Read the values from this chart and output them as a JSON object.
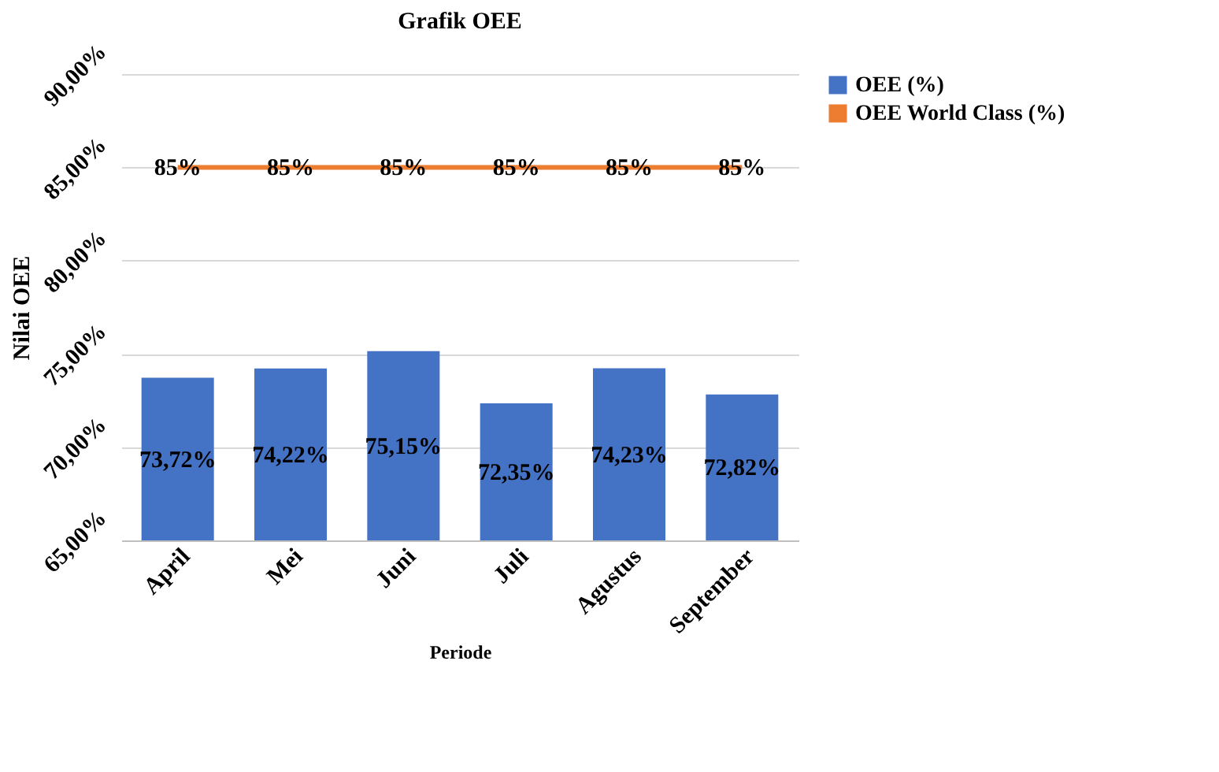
{
  "chart_data": {
    "type": "bar",
    "title": "Grafik OEE",
    "xlabel": "Periode",
    "ylabel": "Nilai OEE",
    "categories": [
      "April",
      "Mei",
      "Juni",
      "Juli",
      "Agustus",
      "September"
    ],
    "series": [
      {
        "name": "OEE (%)",
        "color": "#4472c4",
        "values": [
          73.72,
          74.22,
          75.15,
          72.35,
          74.23,
          72.82
        ],
        "value_labels": [
          "73,72%",
          "74,22%",
          "75,15%",
          "72,35%",
          "74,23%",
          "72,82%"
        ]
      },
      {
        "name": "OEE World Class (%)",
        "type": "line",
        "color": "#ed7d31",
        "values": [
          85,
          85,
          85,
          85,
          85,
          85
        ],
        "value_labels": [
          "85%",
          "85%",
          "85%",
          "85%",
          "85%",
          "85%"
        ]
      }
    ],
    "ylim": [
      65,
      90
    ],
    "yticks": [
      {
        "value": 65,
        "label": "65,00%"
      },
      {
        "value": 70,
        "label": "70,00%"
      },
      {
        "value": 75,
        "label": "75,00%"
      },
      {
        "value": 80,
        "label": "80,00%"
      },
      {
        "value": 85,
        "label": "85,00%"
      },
      {
        "value": 90,
        "label": "90,00%"
      }
    ],
    "grid": "y",
    "legend": "right",
    "marker": "none",
    "line_style": "solid"
  }
}
